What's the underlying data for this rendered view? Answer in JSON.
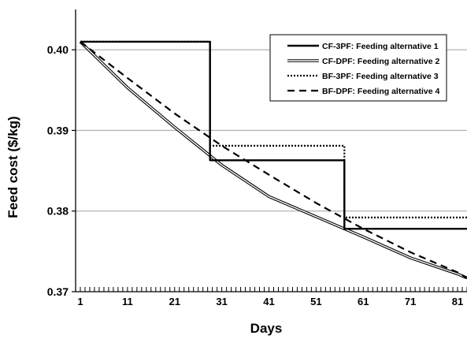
{
  "chart_data": {
    "type": "line",
    "title": "",
    "xlabel": "Days",
    "ylabel": "Feed cost ($/kg)",
    "xlim": [
      0,
      83
    ],
    "ylim": [
      0.37,
      0.405
    ],
    "xticks": [
      1,
      11,
      21,
      31,
      41,
      51,
      61,
      71,
      81
    ],
    "yticks": [
      0.37,
      0.38,
      0.39,
      0.4
    ],
    "ytick_labels": [
      "0.37",
      "0.38",
      "0.39",
      "0.40"
    ],
    "grid": "horizontal",
    "legend_position": "top-right",
    "series": [
      {
        "name": "CF-3PF: Feeding alternative 1",
        "style": "solid-thick",
        "color": "#000000",
        "x": [
          1,
          28.5,
          28.5,
          57,
          57,
          83
        ],
        "y": [
          0.401,
          0.401,
          0.3863,
          0.3863,
          0.3778,
          0.3778
        ]
      },
      {
        "name": "CF-DPF: Feeding alternative 2",
        "style": "double-line",
        "color": "#000000",
        "x": [
          1,
          11,
          21,
          31,
          41,
          51,
          57,
          61,
          71,
          81,
          83
        ],
        "y": [
          0.401,
          0.3953,
          0.3904,
          0.3857,
          0.3818,
          0.3793,
          0.3778,
          0.3768,
          0.3742,
          0.3722,
          0.3717
        ]
      },
      {
        "name": "BF-3PF: Feeding alternative 3",
        "style": "dotted",
        "color": "#000000",
        "x": [
          1,
          28.5,
          28.5,
          57,
          57,
          83
        ],
        "y": [
          0.401,
          0.401,
          0.3881,
          0.3881,
          0.3792,
          0.3792
        ]
      },
      {
        "name": "BF-DPF: Feeding alternative 4",
        "style": "dashed",
        "color": "#000000",
        "x": [
          1,
          11,
          21,
          31,
          41,
          51,
          61,
          71,
          81,
          83
        ],
        "y": [
          0.401,
          0.3965,
          0.3921,
          0.3881,
          0.3845,
          0.381,
          0.3778,
          0.3749,
          0.3724,
          0.3717
        ]
      }
    ]
  }
}
